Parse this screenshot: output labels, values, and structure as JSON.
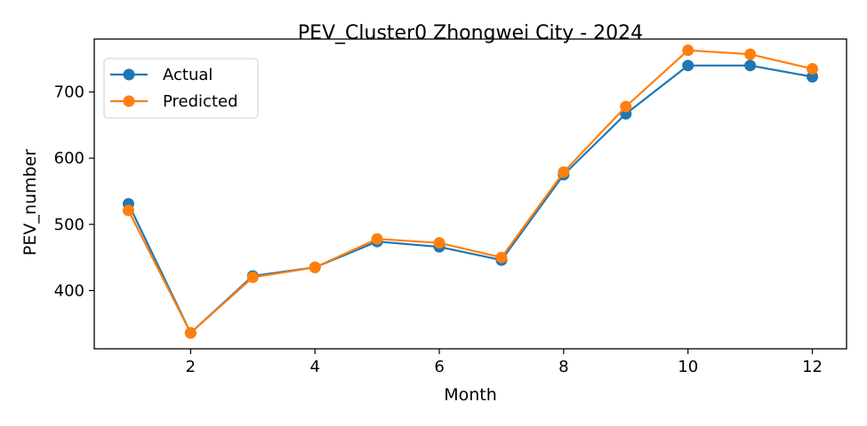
{
  "chart_data": {
    "type": "line",
    "title": "PEV_Cluster0 Zhongwei City - 2024",
    "xlabel": "Month",
    "ylabel": "PEV_number",
    "x": [
      1,
      2,
      3,
      4,
      5,
      6,
      7,
      8,
      9,
      10,
      11,
      12
    ],
    "xlim": [
      0.45,
      12.55
    ],
    "ylim": [
      312,
      780
    ],
    "xticks": [
      2,
      4,
      6,
      8,
      10,
      12
    ],
    "yticks": [
      400,
      500,
      600,
      700
    ],
    "grid": false,
    "legend_position": "top-left",
    "series": [
      {
        "name": "Actual",
        "color": "#1f77b4",
        "values": [
          531,
          336,
          422,
          435,
          474,
          466,
          446,
          575,
          667,
          740,
          740,
          723
        ]
      },
      {
        "name": "Predicted",
        "color": "#ff7f0e",
        "values": [
          521,
          336,
          420,
          435,
          478,
          472,
          450,
          579,
          678,
          763,
          757,
          735
        ]
      }
    ]
  }
}
